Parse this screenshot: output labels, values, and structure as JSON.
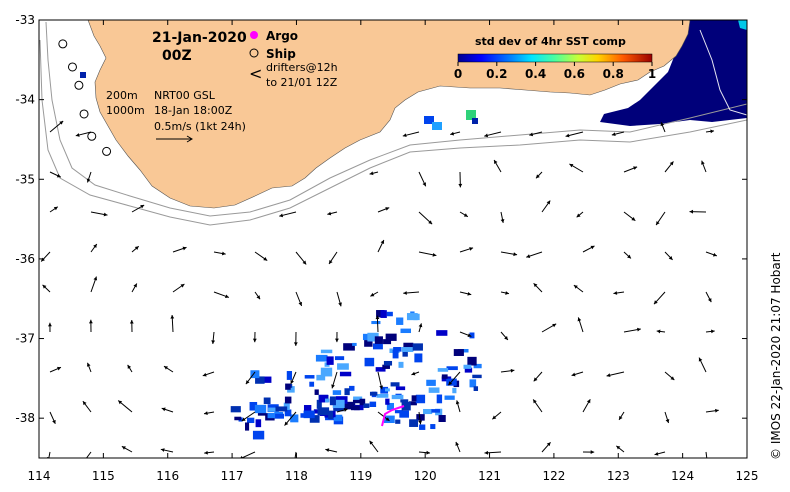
{
  "map": {
    "date": "21-Jan-2020",
    "hour": "00Z",
    "legend": {
      "argo": "Argo",
      "ship": "Ship",
      "drifters_line1": "drifters@12h",
      "drifters_line2": "to 21/01 12Z",
      "drifter_symbol": "<"
    },
    "contours": {
      "c200": "200m",
      "c1000": "1000m"
    },
    "current_source": "NRT00 GSL",
    "current_time": "18-Jan 18:00Z",
    "scale_label": "0.5m/s (1kt 24h)",
    "colorbar": {
      "title": "std dev of 4hr SST comp",
      "ticks": [
        "0",
        "0.2",
        "0.4",
        "0.6",
        "0.8",
        "1"
      ]
    },
    "credit": "© IMOS 22-Jan-2020 21:07 Hobart",
    "lon_range": [
      114,
      125
    ],
    "lat_range": [
      -38.5,
      -33
    ],
    "lon_ticks": [
      "114",
      "115",
      "116",
      "117",
      "118",
      "119",
      "120",
      "121",
      "122",
      "123",
      "124",
      "125"
    ],
    "lat_ticks": [
      "-33",
      "-34",
      "-35",
      "-36",
      "-37",
      "-38"
    ],
    "colors": {
      "land": "#f9c896",
      "deep_navy": "#00007a",
      "arrow": "#000000",
      "contour": "#9a9a9a",
      "drifter": "#ff00ff",
      "argo": "#ff00ff"
    },
    "ship_track": [
      [
        114.37,
        -33.3
      ],
      [
        114.52,
        -33.59
      ],
      [
        114.62,
        -33.82
      ],
      [
        114.7,
        -34.18
      ],
      [
        114.82,
        -34.46
      ],
      [
        115.05,
        -34.65
      ]
    ]
  }
}
